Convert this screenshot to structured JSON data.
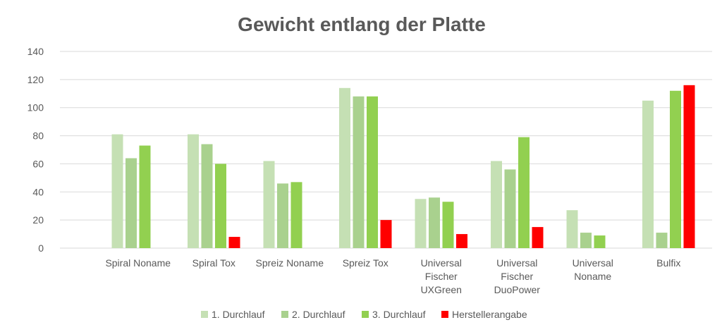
{
  "chart_data": {
    "type": "bar",
    "title": "Gewicht entlang der Platte",
    "xlabel": "",
    "ylabel": "",
    "ylim": [
      0,
      140
    ],
    "yticks": [
      0,
      20,
      40,
      60,
      80,
      100,
      120,
      140
    ],
    "grid": true,
    "legend_position": "bottom",
    "categories": [
      [
        "Spiral Noname"
      ],
      [
        "Spiral Tox"
      ],
      [
        "Spreiz Noname"
      ],
      [
        "Spreiz Tox"
      ],
      [
        "Universal",
        "Fischer",
        "UXGreen"
      ],
      [
        "Universal",
        "Fischer",
        "DuoPower"
      ],
      [
        "Universal",
        "Noname"
      ],
      [
        "Bulfix"
      ]
    ],
    "series": [
      {
        "name": "1. Durchlauf",
        "color": "#c5e0b4",
        "values": [
          81,
          81,
          62,
          114,
          35,
          62,
          27,
          105
        ]
      },
      {
        "name": "2. Durchlauf",
        "color": "#a9d18e",
        "values": [
          64,
          74,
          46,
          108,
          36,
          56,
          11,
          11
        ]
      },
      {
        "name": "3. Durchlauf",
        "color": "#92d050",
        "values": [
          73,
          60,
          47,
          108,
          33,
          79,
          9,
          112
        ]
      },
      {
        "name": "Herstellerangabe",
        "color": "#ff0000",
        "values": [
          null,
          8,
          null,
          20,
          10,
          15,
          null,
          116
        ]
      }
    ]
  }
}
